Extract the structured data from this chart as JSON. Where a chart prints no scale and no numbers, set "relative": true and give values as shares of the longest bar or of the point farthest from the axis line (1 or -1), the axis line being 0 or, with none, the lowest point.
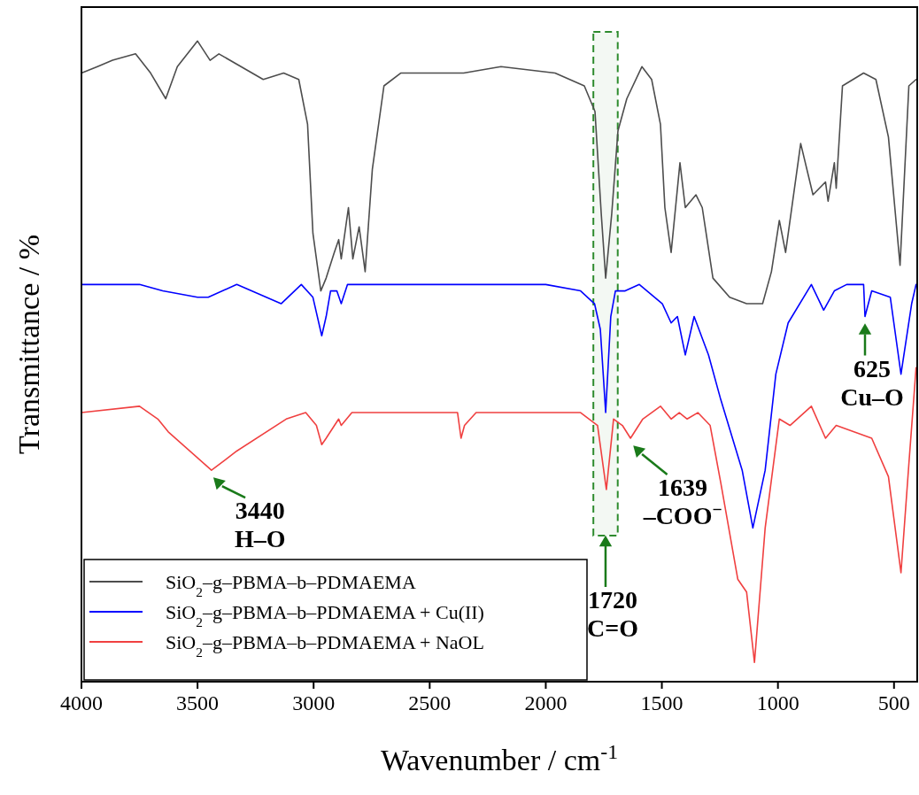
{
  "chart_data": {
    "type": "line",
    "xlabel": "Wavenumber / cm$^{-1}$",
    "ylabel": "Transmittance / %",
    "relative": true,
    "xlim": [
      4000,
      400
    ],
    "xticks": [
      4000,
      3500,
      3000,
      2500,
      2000,
      1500,
      1000,
      500
    ],
    "grid": false,
    "legend": "bottom left",
    "line_style": "solid",
    "marker": "none",
    "series": [
      {
        "name": "SiO$_{2}$–g–PBMA–b–PDMAEMA",
        "color": "#4d4d4d",
        "x": [
          4000,
          3931,
          3866,
          3767,
          3702,
          3637,
          3587,
          3500,
          3446,
          3408,
          3217,
          3129,
          3064,
          3026,
          3003,
          2969,
          2946,
          2911,
          2892,
          2881,
          2850,
          2831,
          2804,
          2778,
          2747,
          2697,
          2625,
          2354,
          2193,
          1960,
          1834,
          1788,
          1761,
          1742,
          1716,
          1689,
          1651,
          1586,
          1544,
          1506,
          1487,
          1460,
          1422,
          1399,
          1353,
          1326,
          1280,
          1208,
          1135,
          1066,
          1028,
          994,
          967,
          902,
          849,
          795,
          784,
          757,
          749,
          722,
          631,
          578,
          524,
          474,
          436,
          405
        ],
        "values": [
          0.95,
          0.96,
          0.97,
          0.98,
          0.95,
          0.91,
          0.96,
          1.0,
          0.97,
          0.98,
          0.94,
          0.95,
          0.94,
          0.87,
          0.7,
          0.61,
          0.63,
          0.67,
          0.69,
          0.66,
          0.74,
          0.66,
          0.71,
          0.64,
          0.8,
          0.93,
          0.95,
          0.95,
          0.96,
          0.95,
          0.93,
          0.89,
          0.73,
          0.63,
          0.73,
          0.86,
          0.91,
          0.96,
          0.94,
          0.87,
          0.74,
          0.67,
          0.81,
          0.74,
          0.76,
          0.74,
          0.63,
          0.6,
          0.59,
          0.59,
          0.64,
          0.72,
          0.67,
          0.84,
          0.76,
          0.78,
          0.75,
          0.81,
          0.77,
          0.93,
          0.95,
          0.94,
          0.85,
          0.65,
          0.93,
          0.94
        ]
      },
      {
        "name": "SiO$_{2}$–g–PBMA–b–PDMAEMA + Cu(II)",
        "color": "#0000ff",
        "x": [
          4000,
          3930,
          3860,
          3750,
          3650,
          3500,
          3454,
          3331,
          3140,
          3053,
          3003,
          2965,
          2946,
          2927,
          2900,
          2881,
          2854,
          2747,
          2600,
          2350,
          2000,
          1850,
          1790,
          1765,
          1742,
          1720,
          1700,
          1658,
          1597,
          1498,
          1460,
          1433,
          1399,
          1361,
          1299,
          1246,
          1154,
          1108,
          1055,
          1009,
          956,
          856,
          803,
          757,
          704,
          631,
          625,
          596,
          516,
          470,
          424,
          405
        ],
        "values": [
          0.62,
          0.62,
          0.62,
          0.62,
          0.61,
          0.6,
          0.6,
          0.62,
          0.59,
          0.62,
          0.6,
          0.54,
          0.57,
          0.61,
          0.61,
          0.59,
          0.62,
          0.62,
          0.62,
          0.62,
          0.62,
          0.61,
          0.59,
          0.55,
          0.42,
          0.57,
          0.61,
          0.61,
          0.62,
          0.59,
          0.56,
          0.57,
          0.51,
          0.57,
          0.51,
          0.44,
          0.33,
          0.24,
          0.33,
          0.48,
          0.56,
          0.62,
          0.58,
          0.61,
          0.62,
          0.62,
          0.57,
          0.61,
          0.6,
          0.48,
          0.59,
          0.62
        ]
      },
      {
        "name": "SiO$_{2}$–g–PBMA–b–PDMAEMA + NaOL",
        "color": "#f04040",
        "x": [
          4000,
          3750,
          3671,
          3626,
          3440,
          3331,
          3118,
          3034,
          2988,
          2965,
          2946,
          2892,
          2881,
          2835,
          2380,
          2365,
          2350,
          2300,
          1850,
          1777,
          1739,
          1708,
          1670,
          1635,
          1582,
          1506,
          1460,
          1425,
          1391,
          1345,
          1292,
          1246,
          1173,
          1135,
          1101,
          1055,
          994,
          948,
          856,
          795,
          749,
          596,
          524,
          470,
          436,
          405
        ],
        "values": [
          0.42,
          0.43,
          0.41,
          0.39,
          0.33,
          0.36,
          0.41,
          0.42,
          0.4,
          0.37,
          0.38,
          0.41,
          0.4,
          0.42,
          0.42,
          0.38,
          0.4,
          0.42,
          0.42,
          0.4,
          0.3,
          0.41,
          0.4,
          0.38,
          0.41,
          0.43,
          0.41,
          0.42,
          0.41,
          0.42,
          0.4,
          0.31,
          0.16,
          0.14,
          0.03,
          0.24,
          0.41,
          0.4,
          0.43,
          0.38,
          0.4,
          0.38,
          0.32,
          0.17,
          0.34,
          0.49
        ]
      }
    ],
    "bands": [
      {
        "axis": "x",
        "from": 1795,
        "to": 1690,
        "color": "#2e8b2e"
      }
    ],
    "annotations": [
      {
        "text": "3440\nH–O",
        "x": 3440,
        "y": 0.33
      },
      {
        "text": "1639\n–COO$^{−}$",
        "x": 1639,
        "y": 0.38
      },
      "1720\nC=O",
      {
        "text": "625\nCu–O",
        "x": 625,
        "y": 0.57
      }
    ]
  }
}
